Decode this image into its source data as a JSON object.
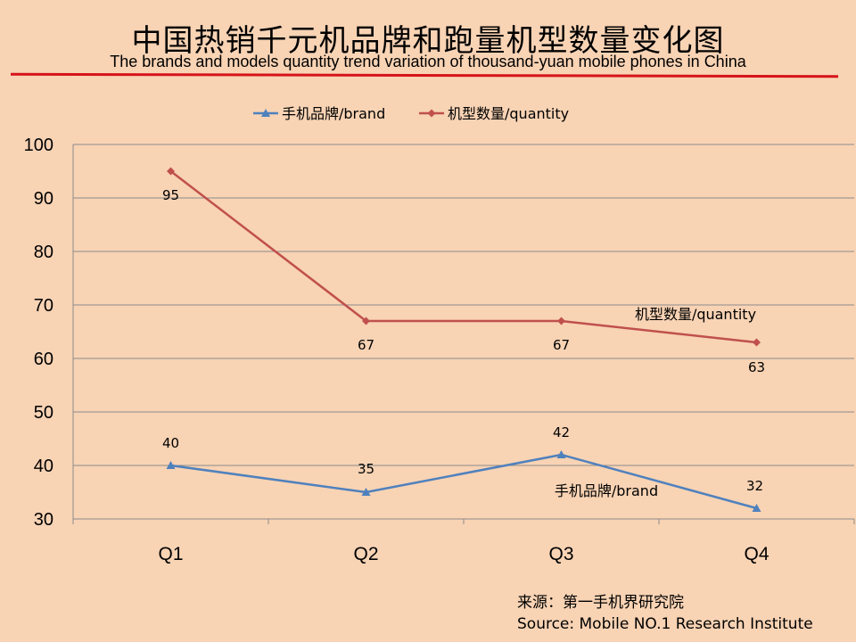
{
  "title_zh": "中国热销千元机品牌和跑量机型数量变化图",
  "title_en": "The brands and models quantity trend variation of thousand-yuan mobile phones in China",
  "source_zh": "来源：第一手机界研究院",
  "source_en": "Source: Mobile NO.1 Research Institute",
  "chart_data": {
    "type": "line",
    "categories": [
      "Q1",
      "Q2",
      "Q3",
      "Q4"
    ],
    "ylim": [
      30,
      100
    ],
    "yticks": [
      30,
      40,
      50,
      60,
      70,
      80,
      90,
      100
    ],
    "grid": true,
    "legend_position": "top",
    "series": [
      {
        "name": "手机品牌/brand",
        "values": [
          40,
          35,
          42,
          32
        ],
        "color": "#4f81bd",
        "marker": "triangle",
        "inline_label": "手机品牌/brand"
      },
      {
        "name": "机型数量/quantity",
        "values": [
          95,
          67,
          67,
          63
        ],
        "color": "#c0504d",
        "marker": "diamond",
        "inline_label": "机型数量/quantity"
      }
    ]
  }
}
